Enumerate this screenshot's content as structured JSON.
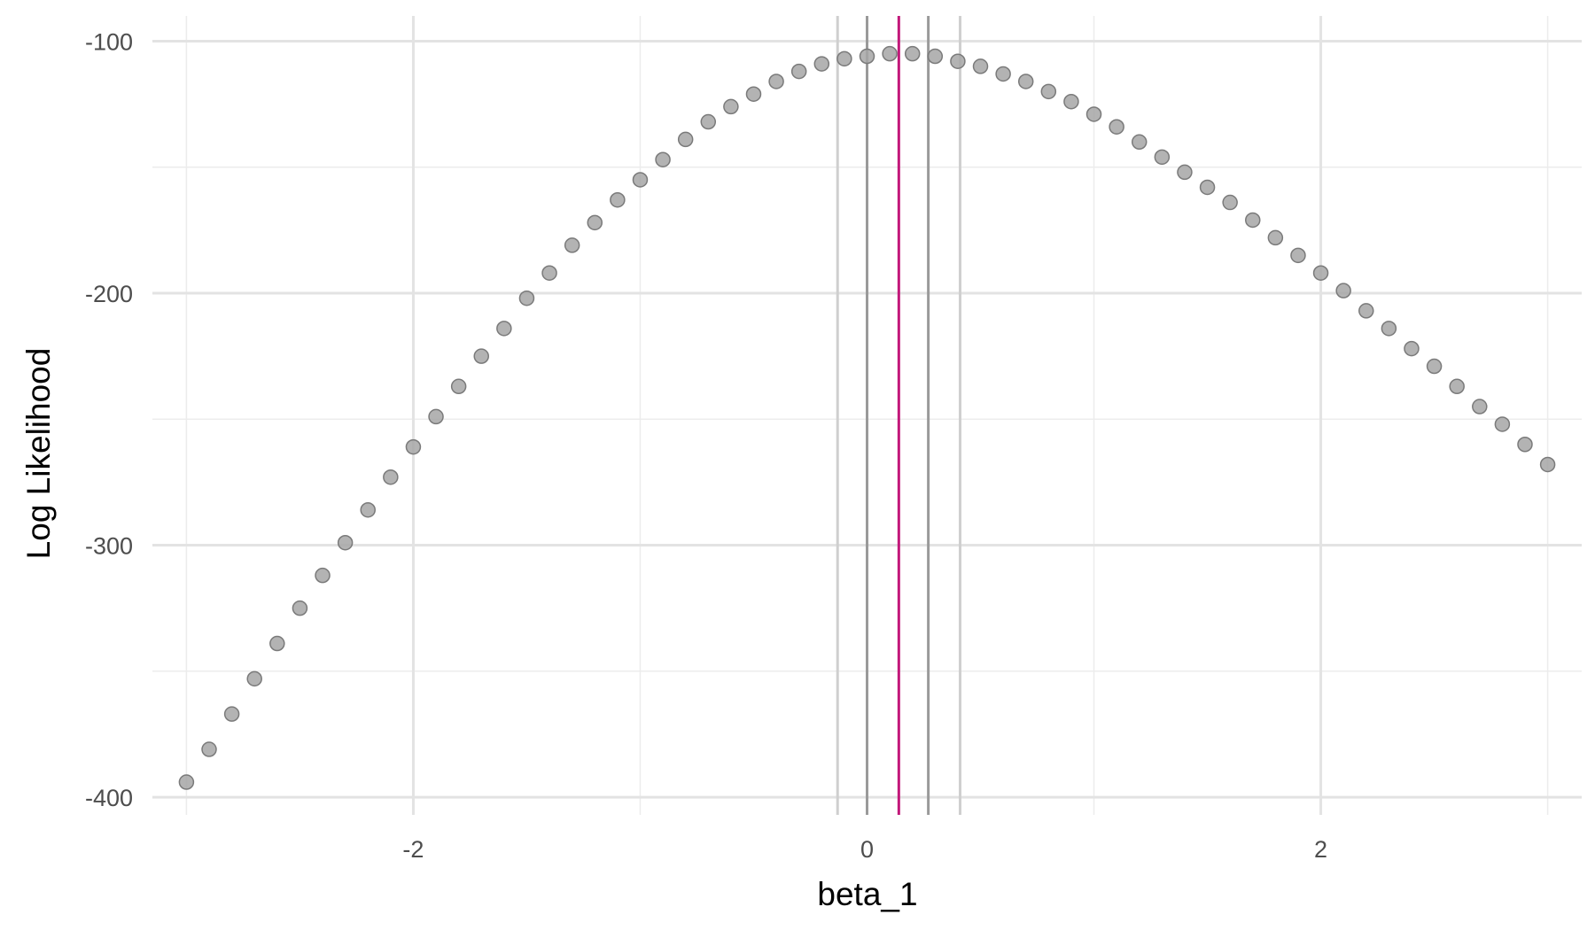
{
  "chart_data": {
    "type": "scatter",
    "xlabel": "beta_1",
    "ylabel": "Log Likelihood",
    "xlim": [
      -3.15,
      3.15
    ],
    "ylim": [
      -407,
      -90
    ],
    "x_ticks": [
      -2,
      0,
      2
    ],
    "x_tick_labels": [
      "-2",
      "0",
      "2"
    ],
    "y_ticks": [
      -100,
      -200,
      -300,
      -400
    ],
    "y_tick_labels": [
      "-100",
      "-200",
      "-300",
      "-400"
    ],
    "grid": true,
    "x": [
      -3.0,
      -2.9,
      -2.8,
      -2.7,
      -2.6,
      -2.5,
      -2.4,
      -2.3,
      -2.2,
      -2.1,
      -2.0,
      -1.9,
      -1.8,
      -1.7,
      -1.6,
      -1.5,
      -1.4,
      -1.3,
      -1.2,
      -1.1,
      -1.0,
      -0.9,
      -0.8,
      -0.7,
      -0.6,
      -0.5,
      -0.4,
      -0.3,
      -0.2,
      -0.1,
      0.0,
      0.1,
      0.2,
      0.3,
      0.4,
      0.5,
      0.6,
      0.7,
      0.8,
      0.9,
      1.0,
      1.1,
      1.2,
      1.3,
      1.4,
      1.5,
      1.6,
      1.7,
      1.8,
      1.9,
      2.0,
      2.1,
      2.2,
      2.3,
      2.4,
      2.5,
      2.6,
      2.7,
      2.8,
      2.9,
      3.0
    ],
    "y": [
      -394,
      -381,
      -367,
      -353,
      -339,
      -325,
      -312,
      -299,
      -286,
      -273,
      -261,
      -249,
      -237,
      -225,
      -214,
      -202,
      -192,
      -181,
      -172,
      -163,
      -155,
      -147,
      -139,
      -132,
      -126,
      -121,
      -116,
      -112,
      -109,
      -107,
      -106,
      -105,
      -105,
      -106,
      -108,
      -110,
      -113,
      -116,
      -120,
      -124,
      -129,
      -134,
      -140,
      -146,
      -152,
      -158,
      -164,
      -171,
      -178,
      -185,
      -192,
      -199,
      -207,
      -214,
      -222,
      -229,
      -237,
      -245,
      -252,
      -260,
      -268
    ],
    "vlines": [
      {
        "x": -0.13,
        "color": "#cfcfcf"
      },
      {
        "x": 0.0,
        "color": "#9a9a9a"
      },
      {
        "x": 0.27,
        "color": "#9a9a9a"
      },
      {
        "x": 0.41,
        "color": "#cfcfcf"
      },
      {
        "x": 0.14,
        "color": "#c2187a"
      }
    ],
    "point_color": "#a6a6a6",
    "point_stroke": "#7a7a7a"
  }
}
